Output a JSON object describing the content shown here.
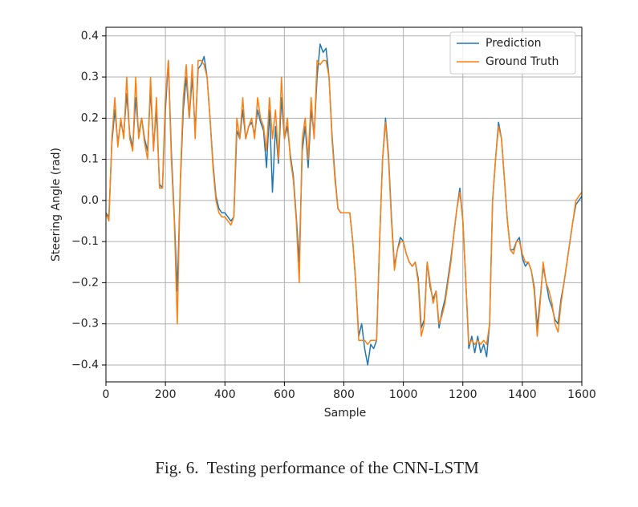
{
  "chart_data": {
    "type": "line",
    "xlabel": "Sample",
    "ylabel": "Steering Angle (rad)",
    "xlim": [
      0,
      1600
    ],
    "ylim": [
      -0.441,
      0.421
    ],
    "xticks": [
      0,
      200,
      400,
      600,
      800,
      1000,
      1200,
      1400,
      1600
    ],
    "yticks": [
      {
        "value": -0.4,
        "label": "−0.4"
      },
      {
        "value": -0.3,
        "label": "−0.3"
      },
      {
        "value": -0.2,
        "label": "−0.2"
      },
      {
        "value": -0.1,
        "label": "−0.1"
      },
      {
        "value": 0,
        "label": "0.0"
      },
      0.1,
      0.2,
      0.3,
      0.4
    ],
    "grid": true,
    "legend": "upper right",
    "x": [
      0,
      10,
      20,
      30,
      40,
      50,
      60,
      70,
      80,
      90,
      100,
      110,
      120,
      130,
      140,
      150,
      160,
      170,
      180,
      190,
      200,
      210,
      220,
      230,
      240,
      250,
      260,
      270,
      280,
      290,
      300,
      310,
      320,
      330,
      340,
      350,
      360,
      370,
      380,
      390,
      400,
      410,
      420,
      430,
      440,
      450,
      460,
      470,
      480,
      490,
      500,
      510,
      520,
      530,
      540,
      550,
      560,
      570,
      580,
      590,
      600,
      610,
      620,
      630,
      640,
      650,
      660,
      670,
      680,
      690,
      700,
      710,
      720,
      730,
      740,
      750,
      760,
      770,
      780,
      790,
      800,
      810,
      820,
      830,
      840,
      850,
      860,
      870,
      880,
      890,
      900,
      910,
      920,
      930,
      940,
      950,
      960,
      970,
      980,
      990,
      1000,
      1010,
      1020,
      1030,
      1040,
      1050,
      1060,
      1070,
      1080,
      1090,
      1100,
      1110,
      1120,
      1130,
      1140,
      1150,
      1160,
      1170,
      1180,
      1190,
      1200,
      1210,
      1220,
      1230,
      1240,
      1250,
      1260,
      1270,
      1280,
      1290,
      1300,
      1310,
      1320,
      1330,
      1340,
      1350,
      1360,
      1370,
      1380,
      1390,
      1400,
      1410,
      1420,
      1430,
      1440,
      1450,
      1460,
      1470,
      1480,
      1490,
      1500,
      1510,
      1520,
      1530,
      1540,
      1550,
      1560,
      1570,
      1580,
      1590,
      1600
    ],
    "series": [
      {
        "name": "Prediction",
        "color": "#1f77b4",
        "values": [
          -0.03,
          -0.04,
          0.14,
          0.22,
          0.14,
          0.19,
          0.16,
          0.26,
          0.16,
          0.13,
          0.25,
          0.16,
          0.2,
          0.15,
          0.12,
          0.27,
          0.13,
          0.22,
          0.04,
          0.03,
          0.22,
          0.34,
          0.12,
          -0.04,
          -0.22,
          0.04,
          0.22,
          0.3,
          0.2,
          0.3,
          0.17,
          0.32,
          0.33,
          0.35,
          0.3,
          0.2,
          0.09,
          0.01,
          -0.02,
          -0.03,
          -0.03,
          -0.04,
          -0.05,
          -0.04,
          0.17,
          0.15,
          0.22,
          0.15,
          0.18,
          0.19,
          0.16,
          0.22,
          0.19,
          0.17,
          0.08,
          0.22,
          0.02,
          0.18,
          0.09,
          0.25,
          0.15,
          0.18,
          0.11,
          0.06,
          -0.04,
          -0.15,
          0.12,
          0.18,
          0.08,
          0.22,
          0.16,
          0.3,
          0.38,
          0.36,
          0.37,
          0.3,
          0.16,
          0.06,
          -0.02,
          -0.03,
          -0.03,
          -0.03,
          -0.03,
          -0.1,
          -0.2,
          -0.33,
          -0.3,
          -0.36,
          -0.4,
          -0.35,
          -0.36,
          -0.34,
          -0.1,
          0.1,
          0.2,
          0.11,
          -0.04,
          -0.16,
          -0.12,
          -0.09,
          -0.1,
          -0.13,
          -0.15,
          -0.16,
          -0.15,
          -0.19,
          -0.31,
          -0.29,
          -0.15,
          -0.21,
          -0.24,
          -0.22,
          -0.31,
          -0.27,
          -0.24,
          -0.19,
          -0.14,
          -0.08,
          -0.02,
          0.03,
          -0.05,
          -0.2,
          -0.36,
          -0.33,
          -0.37,
          -0.33,
          -0.37,
          -0.35,
          -0.38,
          -0.3,
          0.0,
          0.1,
          0.19,
          0.15,
          0.05,
          -0.05,
          -0.12,
          -0.12,
          -0.1,
          -0.09,
          -0.14,
          -0.16,
          -0.15,
          -0.17,
          -0.21,
          -0.31,
          -0.24,
          -0.16,
          -0.2,
          -0.24,
          -0.26,
          -0.29,
          -0.3,
          -0.24,
          -0.2,
          -0.15,
          -0.1,
          -0.05,
          -0.01,
          0.0,
          0.01
        ]
      },
      {
        "name": "Ground Truth",
        "color": "#ff7f0e",
        "values": [
          -0.03,
          -0.05,
          0.15,
          0.25,
          0.13,
          0.2,
          0.15,
          0.3,
          0.15,
          0.12,
          0.3,
          0.15,
          0.2,
          0.14,
          0.1,
          0.3,
          0.12,
          0.25,
          0.03,
          0.03,
          0.25,
          0.34,
          0.1,
          -0.05,
          -0.3,
          0.05,
          0.25,
          0.33,
          0.2,
          0.33,
          0.15,
          0.34,
          0.34,
          0.33,
          0.3,
          0.2,
          0.08,
          0.0,
          -0.03,
          -0.04,
          -0.04,
          -0.05,
          -0.06,
          -0.04,
          0.2,
          0.15,
          0.25,
          0.15,
          0.18,
          0.2,
          0.15,
          0.25,
          0.2,
          0.18,
          0.12,
          0.25,
          0.15,
          0.22,
          0.1,
          0.3,
          0.15,
          0.2,
          0.1,
          0.05,
          -0.05,
          -0.2,
          0.15,
          0.2,
          0.1,
          0.25,
          0.15,
          0.34,
          0.33,
          0.34,
          0.34,
          0.3,
          0.15,
          0.05,
          -0.02,
          -0.03,
          -0.03,
          -0.03,
          -0.03,
          -0.1,
          -0.2,
          -0.34,
          -0.34,
          -0.34,
          -0.35,
          -0.34,
          -0.34,
          -0.34,
          -0.1,
          0.1,
          0.19,
          0.1,
          -0.05,
          -0.17,
          -0.12,
          -0.1,
          -0.1,
          -0.13,
          -0.15,
          -0.16,
          -0.15,
          -0.2,
          -0.33,
          -0.3,
          -0.15,
          -0.2,
          -0.25,
          -0.22,
          -0.3,
          -0.28,
          -0.25,
          -0.2,
          -0.15,
          -0.08,
          -0.02,
          0.02,
          -0.05,
          -0.2,
          -0.35,
          -0.34,
          -0.35,
          -0.34,
          -0.35,
          -0.34,
          -0.35,
          -0.3,
          0.0,
          0.1,
          0.18,
          0.15,
          0.05,
          -0.05,
          -0.12,
          -0.13,
          -0.1,
          -0.1,
          -0.13,
          -0.15,
          -0.15,
          -0.17,
          -0.22,
          -0.33,
          -0.25,
          -0.15,
          -0.2,
          -0.22,
          -0.25,
          -0.3,
          -0.32,
          -0.25,
          -0.2,
          -0.15,
          -0.1,
          -0.05,
          0.0,
          0.01,
          0.02
        ]
      }
    ]
  },
  "caption": "Fig. 6.  Testing performance of the CNN-LSTM"
}
